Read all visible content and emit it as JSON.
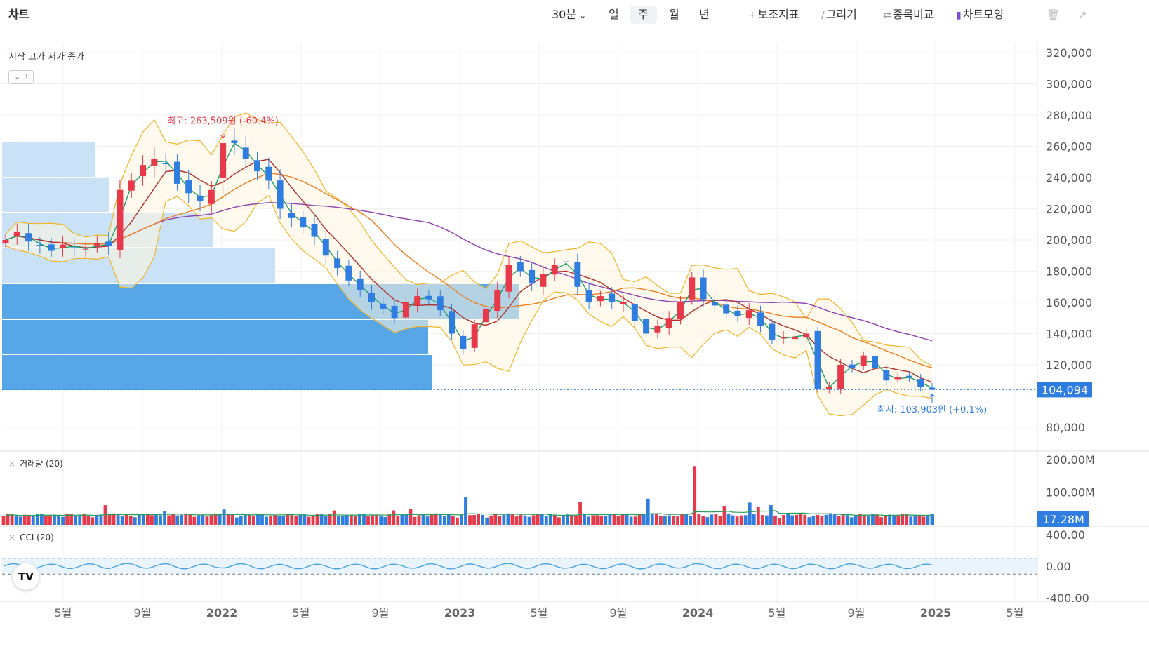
{
  "toolbar": {
    "title": "차트",
    "interval": "30분",
    "periods": [
      "일",
      "주",
      "월",
      "년"
    ],
    "active_period": "주",
    "indicator_label": "보조지표",
    "draw_label": "그리기",
    "compare_label": "종목비교",
    "shape_label": "차트모양",
    "icons": {
      "indicator": "plus-icon",
      "draw": "pencil-icon",
      "compare": "swap-icon",
      "shape": "candle-icon",
      "trash": "trash-icon",
      "expand": "expand-icon",
      "dropdown": "chevron-down-icon"
    }
  },
  "legend": {
    "ohlc": "시작 고가 저가 종가",
    "collapsed_count": "3"
  },
  "colors": {
    "up": "#e8394a",
    "down": "#2f7de1",
    "accent": "#2f7de1",
    "ma5": "#1b9e6a",
    "ma20": "#b0302a",
    "ma60": "#f07f1f",
    "ma120": "#8e3fb0",
    "bollinger": "#f0b429",
    "volume_ma": "#22a05a",
    "cci": "#4aa3df"
  },
  "chart_data": [
    {
      "type": "candlestick",
      "interval": "weekly",
      "x_ticks": [
        "5월",
        "9월",
        "2022",
        "5월",
        "9월",
        "2023",
        "5월",
        "9월",
        "2024",
        "5월",
        "9월",
        "2025",
        "5월"
      ],
      "y_ticks": [
        "320,000",
        "300,000",
        "280,000",
        "260,000",
        "240,000",
        "220,000",
        "200,000",
        "180,000",
        "160,000",
        "140,000",
        "120,000",
        "80,000"
      ],
      "ylim": [
        80000,
        320000
      ],
      "close": [
        200000,
        205000,
        199000,
        196000,
        193000,
        197000,
        195000,
        194000,
        198000,
        196000,
        232000,
        238000,
        248000,
        252000,
        249000,
        236000,
        230000,
        225000,
        232000,
        262000,
        262000,
        252000,
        244000,
        238000,
        220000,
        214000,
        208000,
        202000,
        190000,
        182000,
        174000,
        168000,
        160000,
        156000,
        150000,
        160000,
        164000,
        162000,
        155000,
        140000,
        130000,
        146000,
        156000,
        168000,
        184000,
        180000,
        172000,
        178000,
        184000,
        186000,
        170000,
        160000,
        164000,
        160000,
        160000,
        148000,
        140000,
        145000,
        150000,
        160000,
        176000,
        162000,
        158000,
        153000,
        151000,
        155000,
        145000,
        136000,
        138000,
        138000,
        140000,
        104500,
        106000,
        120000,
        118000,
        126000,
        118000,
        110000,
        112000,
        112000,
        106000,
        104094
      ],
      "last_price_label": "104,094",
      "high_annotation": "최고: 263,509원 (-60.4%)",
      "low_annotation": "최저: 103,903원 (+0.1%)",
      "overlays": [
        {
          "type": "moving_average",
          "period": 5
        },
        {
          "type": "moving_average",
          "period": 20
        },
        {
          "type": "moving_average",
          "period": 60
        },
        {
          "type": "moving_average",
          "period": 120
        },
        {
          "type": "bollinger",
          "period": 20
        }
      ]
    },
    {
      "type": "bar",
      "label": "거래량 (20)",
      "y_ticks": [
        "200.00M",
        "100.00M"
      ],
      "ylim": [
        0,
        200
      ],
      "last_value_label": "17.28M",
      "spikes": [
        [
          24,
          60
        ],
        [
          38,
          43
        ],
        [
          52,
          47
        ],
        [
          78,
          44
        ],
        [
          92,
          44
        ],
        [
          96,
          48
        ],
        [
          109,
          86
        ],
        [
          136,
          70
        ],
        [
          152,
          80
        ],
        [
          163,
          180
        ],
        [
          170,
          58
        ],
        [
          176,
          68
        ],
        [
          178,
          56
        ],
        [
          181,
          60
        ]
      ]
    },
    {
      "type": "line",
      "label": "CCI (20)",
      "y_ticks": [
        "400.00",
        "0.00",
        "-400.00"
      ],
      "ylim": [
        -400,
        400
      ],
      "bands": [
        100,
        -100
      ]
    }
  ]
}
